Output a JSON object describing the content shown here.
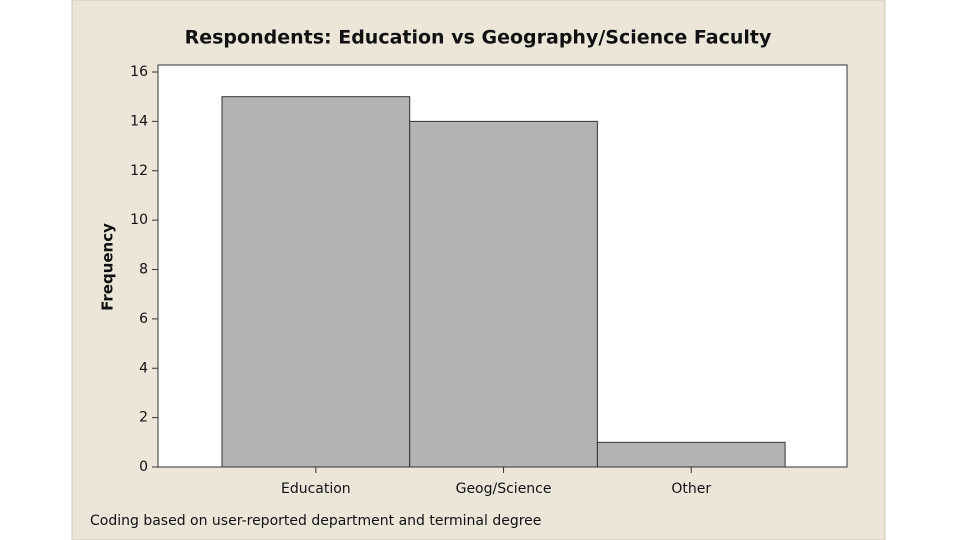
{
  "chart_data": {
    "type": "bar",
    "title": "Respondents: Education vs Geography/Science Faculty",
    "y_label": "Frequency",
    "note": "Coding based on user-reported department and terminal degree",
    "categories": [
      "Education",
      "Geog/Science",
      "Other"
    ],
    "values": [
      15,
      14,
      1
    ],
    "color": "#b3b3b3",
    "ylim": [
      0,
      16
    ],
    "yticks": [
      0,
      2,
      4,
      6,
      8,
      10,
      12,
      14,
      16
    ],
    "grid": false
  }
}
